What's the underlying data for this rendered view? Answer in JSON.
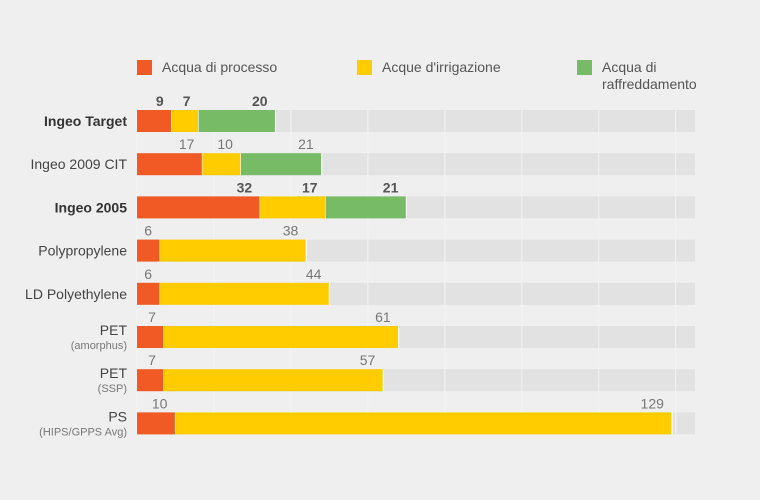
{
  "chart_data": {
    "type": "bar",
    "orientation": "horizontal",
    "stacked": true,
    "grid": true,
    "legend_position": "top",
    "xlim": [
      0,
      145
    ],
    "legend": [
      {
        "name": "Acqua di processo",
        "color": "#f15a24"
      },
      {
        "name": "Acque d'irrigazione",
        "color": "#ffcc00"
      },
      {
        "name": "Acqua di raffreddamento",
        "color": "#77bb66"
      }
    ],
    "categories": [
      {
        "label": "Ingeo Target",
        "sub": "",
        "bold": true
      },
      {
        "label": "Ingeo 2009 CIT",
        "sub": "",
        "bold": false
      },
      {
        "label": "Ingeo 2005",
        "sub": "",
        "bold": true
      },
      {
        "label": "Polypropylene",
        "sub": "",
        "bold": false
      },
      {
        "label": "LD Polyethylene",
        "sub": "",
        "bold": false
      },
      {
        "label": "PET",
        "sub": "(amorphus)",
        "bold": false
      },
      {
        "label": "PET",
        "sub": "(SSP)",
        "bold": false
      },
      {
        "label": "PS",
        "sub": "(HIPS/GPPS Avg)",
        "bold": false
      }
    ],
    "series": [
      {
        "name": "Acqua di processo",
        "values": [
          9,
          17,
          32,
          6,
          6,
          7,
          7,
          10
        ]
      },
      {
        "name": "Acque d'irrigazione",
        "values": [
          7,
          10,
          17,
          38,
          44,
          61,
          57,
          129
        ]
      },
      {
        "name": "Acqua di raffreddamento",
        "values": [
          20,
          21,
          21,
          0,
          0,
          0,
          0,
          0
        ]
      }
    ],
    "colors": {
      "background": "#efefef",
      "track": "#e2e2e2",
      "grid": "#f4f4f4"
    }
  }
}
